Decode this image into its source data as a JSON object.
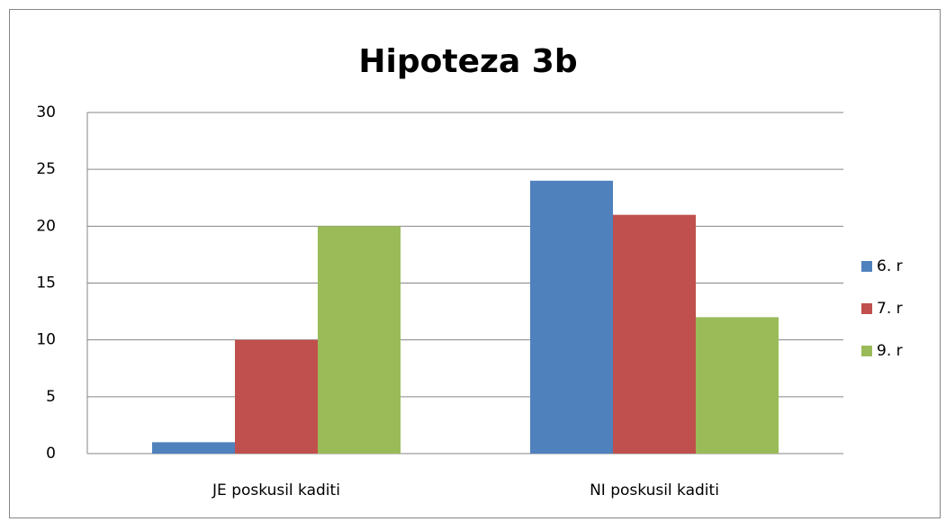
{
  "chart_data": {
    "type": "bar",
    "title": "Hipoteza 3b",
    "categories": [
      "JE poskusil kaditi",
      "NI poskusil kaditi"
    ],
    "series": [
      {
        "name": "6. r",
        "color": "#4f81bd",
        "values": [
          1,
          24
        ]
      },
      {
        "name": "7. r",
        "color": "#c0504d",
        "values": [
          10,
          21
        ]
      },
      {
        "name": "9. r",
        "color": "#9bbb59",
        "values": [
          20,
          12
        ]
      }
    ],
    "ylim": [
      0,
      30
    ],
    "yticks": [
      0,
      5,
      10,
      15,
      20,
      25,
      30
    ],
    "grid": true,
    "legend": "right"
  }
}
